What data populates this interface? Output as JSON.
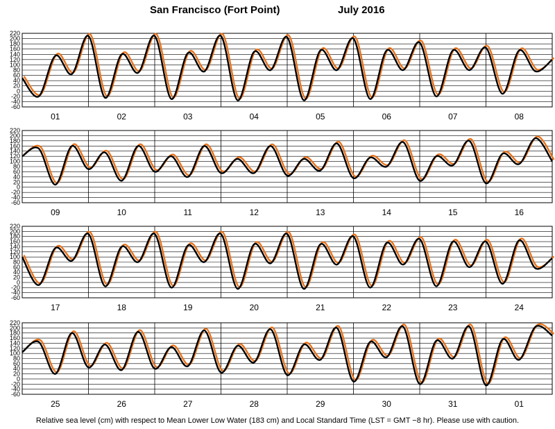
{
  "title": {
    "station": "San Francisco (Fort Point)",
    "month_year": "July   2016"
  },
  "footer": "Relative sea level (cm) with respect to Mean Lower Low Water (183 cm) and Local Standard Time (LST = GMT −8 hr). Please use with caution.",
  "colors": {
    "observed": "#000000",
    "predicted": "#e8731c",
    "grid": "#000000"
  },
  "chart_data": [
    {
      "type": "line",
      "xlabel": "",
      "ylabel": "",
      "ylim": [
        -60,
        220
      ],
      "y_ticks": [
        -60,
        -40,
        -20,
        0,
        20,
        40,
        60,
        80,
        100,
        120,
        140,
        160,
        180,
        200,
        220
      ],
      "x_day_labels": [
        "01",
        "02",
        "03",
        "04",
        "05",
        "06",
        "07",
        "08"
      ],
      "series": [
        {
          "values": [
            50,
            -20,
            135,
            65,
            210,
            -25,
            140,
            70,
            210,
            -30,
            145,
            75,
            210,
            -35,
            150,
            80,
            205,
            -35,
            155,
            80,
            200,
            -30,
            155,
            80,
            185,
            -20,
            155,
            80,
            165,
            -10,
            155,
            75,
            120
          ]
        }
      ]
    },
    {
      "type": "line",
      "xlabel": "",
      "ylabel": "",
      "ylim": [
        -60,
        220
      ],
      "y_ticks": [
        -60,
        -40,
        -20,
        0,
        20,
        40,
        60,
        80,
        100,
        120,
        140,
        160,
        180,
        200,
        220
      ],
      "x_day_labels": [
        "09",
        "10",
        "11",
        "12",
        "13",
        "14",
        "15",
        "16"
      ],
      "series": [
        {
          "values": [
            120,
            150,
            10,
            160,
            70,
            135,
            25,
            160,
            60,
            120,
            40,
            160,
            55,
            110,
            55,
            160,
            45,
            110,
            65,
            170,
            35,
            115,
            80,
            175,
            25,
            120,
            85,
            180,
            15,
            130,
            90,
            190,
            100
          ]
        }
      ]
    },
    {
      "type": "line",
      "xlabel": "",
      "ylabel": "",
      "ylim": [
        -60,
        220
      ],
      "y_ticks": [
        -60,
        -40,
        -20,
        0,
        20,
        40,
        60,
        80,
        100,
        120,
        140,
        160,
        180,
        200,
        220
      ],
      "x_day_labels": [
        "17",
        "18",
        "19",
        "20",
        "21",
        "22",
        "23",
        "24"
      ],
      "series": [
        {
          "values": [
            100,
            -10,
            135,
            85,
            190,
            -15,
            140,
            80,
            190,
            -20,
            145,
            80,
            190,
            -25,
            150,
            75,
            190,
            -25,
            150,
            70,
            180,
            -20,
            155,
            70,
            170,
            -15,
            160,
            60,
            160,
            -5,
            165,
            55,
            95
          ]
        }
      ]
    },
    {
      "type": "line",
      "xlabel": "",
      "ylabel": "",
      "ylim": [
        -60,
        220
      ],
      "y_ticks": [
        -60,
        -40,
        -20,
        0,
        20,
        40,
        60,
        80,
        100,
        120,
        140,
        160,
        180,
        200,
        220
      ],
      "x_day_labels": [
        "25",
        "26",
        "27",
        "28",
        "29",
        "30",
        "31",
        "01"
      ],
      "series": [
        {
          "values": [
            105,
            145,
            20,
            180,
            45,
            135,
            35,
            185,
            40,
            125,
            50,
            190,
            25,
            130,
            65,
            195,
            15,
            135,
            75,
            200,
            -10,
            145,
            85,
            205,
            -20,
            150,
            80,
            205,
            -25,
            155,
            75,
            205,
            170
          ]
        }
      ]
    }
  ]
}
